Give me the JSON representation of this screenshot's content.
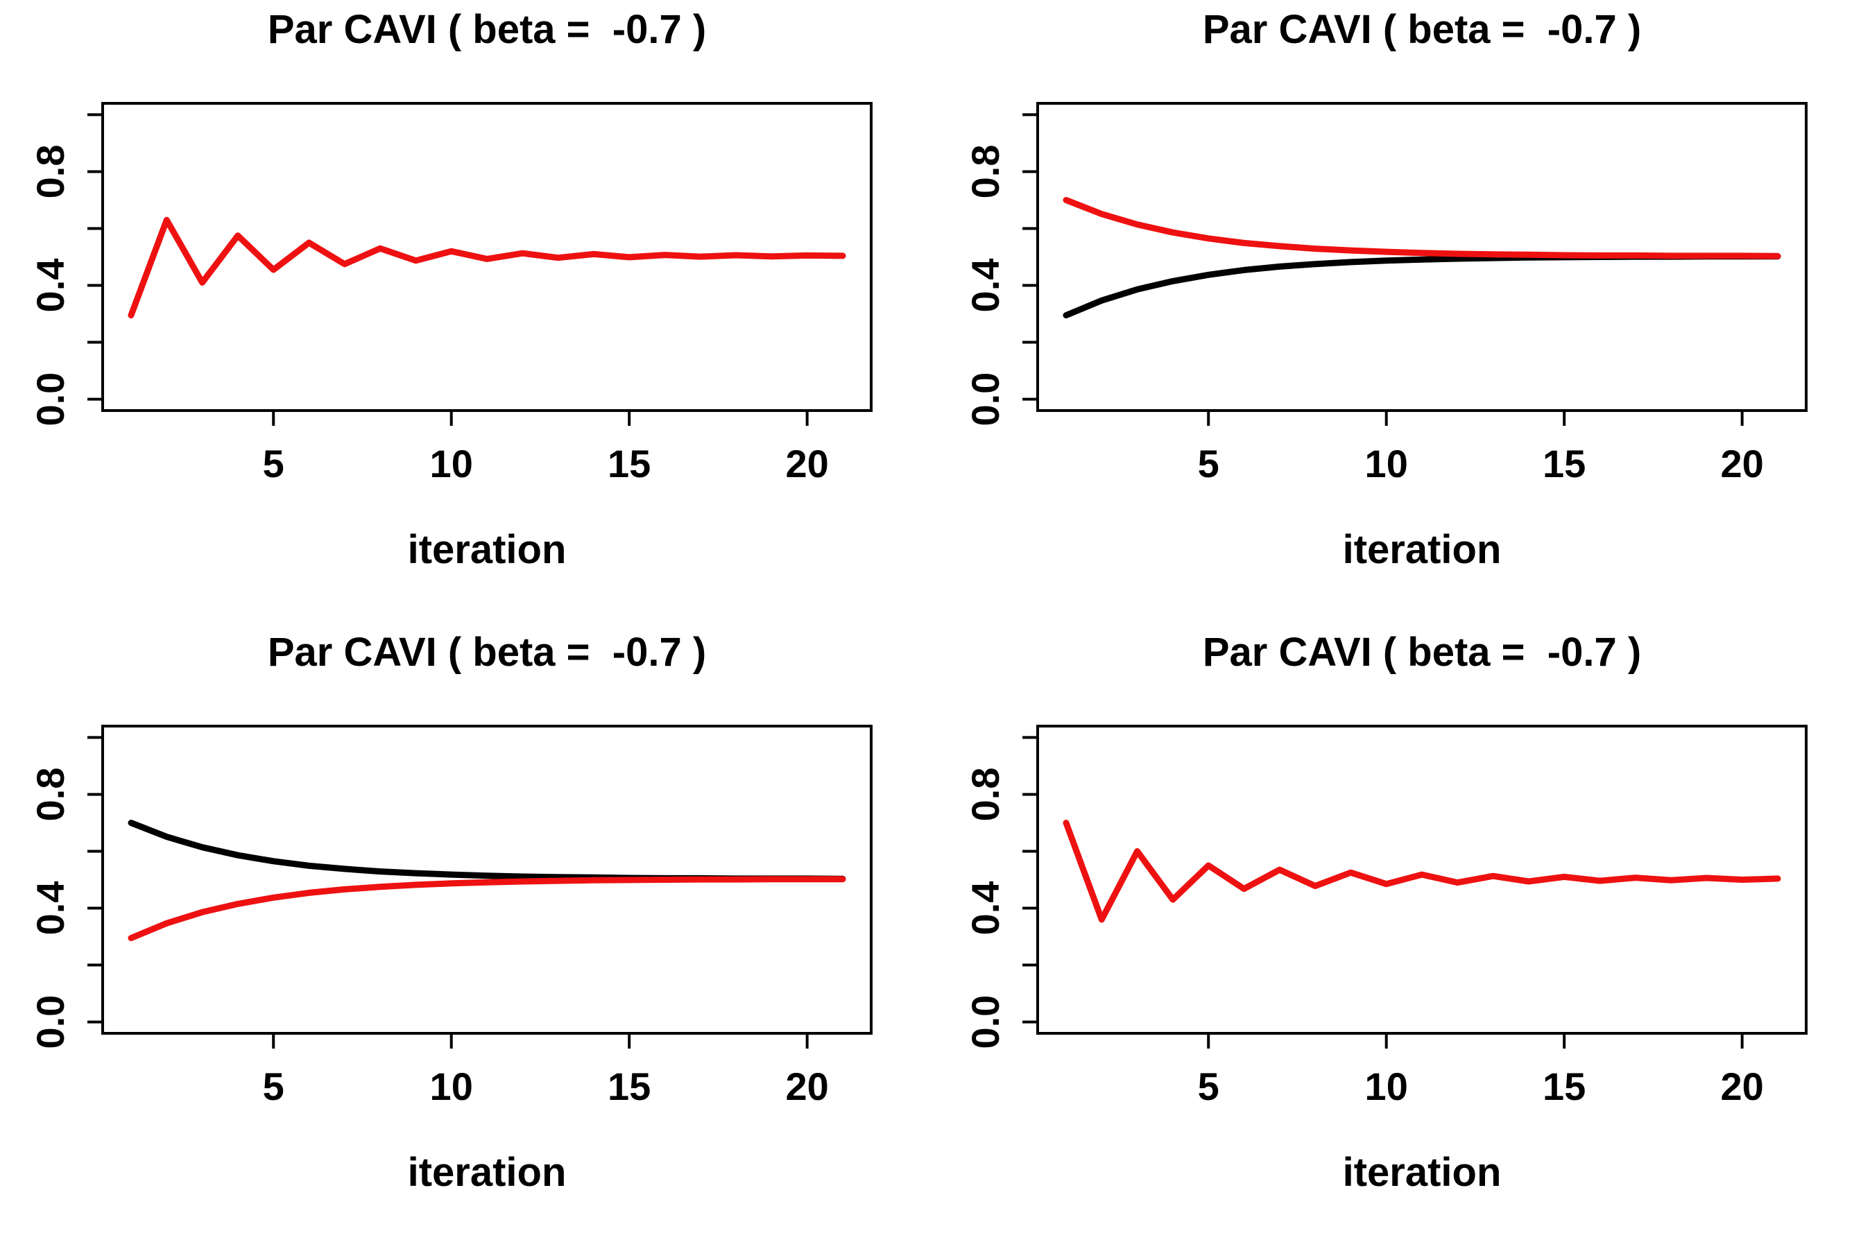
{
  "figure": {
    "background": "#FFFFFF",
    "rows": 2,
    "cols": 2
  },
  "colors": {
    "red": "#EE1111",
    "black": "#000000",
    "axis": "#000000"
  },
  "chart_data": [
    {
      "type": "line",
      "position": "top-left",
      "title": "Par CAVI ( beta =  -0.7 )",
      "xlabel": "iteration",
      "ylabel": "",
      "xlim": [
        0.2,
        21.8
      ],
      "ylim": [
        -0.04,
        1.04
      ],
      "xticks": [
        5,
        10,
        15,
        20
      ],
      "yticks": [
        0,
        0.2,
        0.4,
        0.6,
        0.8,
        1.0
      ],
      "ytick_labels": [
        {
          "value": 0.0,
          "label": "0.0"
        },
        {
          "value": 0.4,
          "label": "0.4"
        },
        {
          "value": 0.8,
          "label": "0.8"
        }
      ],
      "grid": false,
      "legend": "none",
      "x": [
        1,
        2,
        3,
        4,
        5,
        6,
        7,
        8,
        9,
        10,
        11,
        12,
        13,
        14,
        15,
        16,
        17,
        18,
        19,
        20,
        21
      ],
      "series": [
        {
          "name": "series-red",
          "color": "red",
          "values": [
            0.295,
            0.63,
            0.41,
            0.575,
            0.455,
            0.55,
            0.475,
            0.53,
            0.487,
            0.52,
            0.493,
            0.513,
            0.497,
            0.51,
            0.499,
            0.507,
            0.501,
            0.506,
            0.502,
            0.505,
            0.504
          ]
        }
      ]
    },
    {
      "type": "line",
      "position": "top-right",
      "title": "Par CAVI ( beta =  -0.7 )",
      "xlabel": "iteration",
      "ylabel": "",
      "xlim": [
        0.2,
        21.8
      ],
      "ylim": [
        -0.04,
        1.04
      ],
      "xticks": [
        5,
        10,
        15,
        20
      ],
      "yticks": [
        0,
        0.2,
        0.4,
        0.6,
        0.8,
        1.0
      ],
      "ytick_labels": [
        {
          "value": 0.0,
          "label": "0.0"
        },
        {
          "value": 0.4,
          "label": "0.4"
        },
        {
          "value": 0.8,
          "label": "0.8"
        }
      ],
      "grid": false,
      "legend": "none",
      "x": [
        1,
        2,
        3,
        4,
        5,
        6,
        7,
        8,
        9,
        10,
        11,
        12,
        13,
        14,
        15,
        16,
        17,
        18,
        19,
        20,
        21
      ],
      "series": [
        {
          "name": "series-black",
          "color": "black",
          "values": [
            0.295,
            0.347,
            0.386,
            0.415,
            0.437,
            0.454,
            0.466,
            0.475,
            0.482,
            0.487,
            0.491,
            0.494,
            0.496,
            0.498,
            0.499,
            0.5,
            0.501,
            0.501,
            0.502,
            0.502,
            0.502
          ]
        },
        {
          "name": "series-red",
          "color": "red",
          "values": [
            0.7,
            0.651,
            0.614,
            0.586,
            0.565,
            0.549,
            0.538,
            0.529,
            0.523,
            0.518,
            0.514,
            0.511,
            0.509,
            0.508,
            0.506,
            0.505,
            0.505,
            0.504,
            0.504,
            0.504,
            0.503
          ]
        }
      ]
    },
    {
      "type": "line",
      "position": "bottom-left",
      "title": "Par CAVI ( beta =  -0.7 )",
      "xlabel": "iteration",
      "ylabel": "",
      "xlim": [
        0.2,
        21.8
      ],
      "ylim": [
        -0.04,
        1.04
      ],
      "xticks": [
        5,
        10,
        15,
        20
      ],
      "yticks": [
        0,
        0.2,
        0.4,
        0.6,
        0.8,
        1.0
      ],
      "ytick_labels": [
        {
          "value": 0.0,
          "label": "0.0"
        },
        {
          "value": 0.4,
          "label": "0.4"
        },
        {
          "value": 0.8,
          "label": "0.8"
        }
      ],
      "grid": false,
      "legend": "none",
      "x": [
        1,
        2,
        3,
        4,
        5,
        6,
        7,
        8,
        9,
        10,
        11,
        12,
        13,
        14,
        15,
        16,
        17,
        18,
        19,
        20,
        21
      ],
      "series": [
        {
          "name": "series-black",
          "color": "black",
          "values": [
            0.7,
            0.651,
            0.614,
            0.586,
            0.565,
            0.549,
            0.538,
            0.529,
            0.523,
            0.518,
            0.514,
            0.511,
            0.509,
            0.508,
            0.506,
            0.505,
            0.505,
            0.504,
            0.504,
            0.504,
            0.503
          ]
        },
        {
          "name": "series-red",
          "color": "red",
          "values": [
            0.295,
            0.347,
            0.386,
            0.415,
            0.437,
            0.454,
            0.466,
            0.475,
            0.482,
            0.487,
            0.491,
            0.494,
            0.496,
            0.498,
            0.499,
            0.5,
            0.501,
            0.501,
            0.502,
            0.502,
            0.502
          ]
        }
      ]
    },
    {
      "type": "line",
      "position": "bottom-right",
      "title": "Par CAVI ( beta =  -0.7 )",
      "xlabel": "iteration",
      "ylabel": "",
      "xlim": [
        0.2,
        21.8
      ],
      "ylim": [
        -0.04,
        1.04
      ],
      "xticks": [
        5,
        10,
        15,
        20
      ],
      "yticks": [
        0,
        0.2,
        0.4,
        0.6,
        0.8,
        1.0
      ],
      "ytick_labels": [
        {
          "value": 0.0,
          "label": "0.0"
        },
        {
          "value": 0.4,
          "label": "0.4"
        },
        {
          "value": 0.8,
          "label": "0.8"
        }
      ],
      "grid": false,
      "legend": "none",
      "x": [
        1,
        2,
        3,
        4,
        5,
        6,
        7,
        8,
        9,
        10,
        11,
        12,
        13,
        14,
        15,
        16,
        17,
        18,
        19,
        20,
        21
      ],
      "series": [
        {
          "name": "series-red",
          "color": "red",
          "values": [
            0.7,
            0.36,
            0.6,
            0.43,
            0.55,
            0.468,
            0.535,
            0.478,
            0.525,
            0.485,
            0.518,
            0.49,
            0.513,
            0.494,
            0.51,
            0.496,
            0.507,
            0.498,
            0.506,
            0.5,
            0.504
          ]
        }
      ]
    }
  ]
}
